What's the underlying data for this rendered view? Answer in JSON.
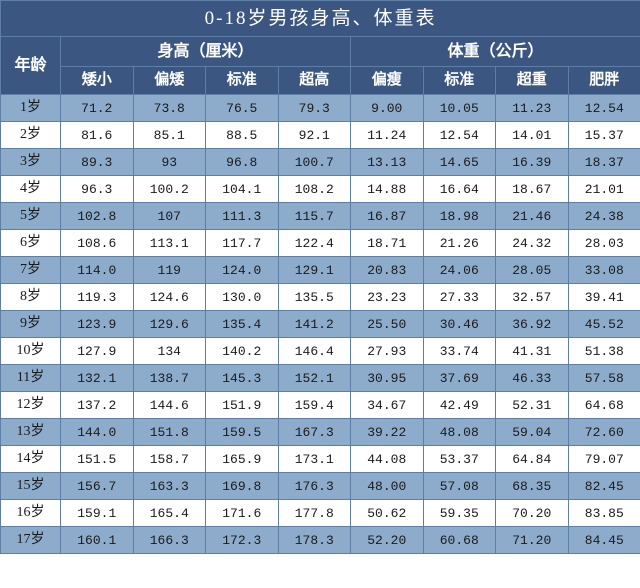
{
  "title": "0-18岁男孩身高、体重表",
  "age_header": "年龄",
  "groups": [
    {
      "label": "身高（厘米）",
      "subs": [
        "矮小",
        "偏矮",
        "标准",
        "超高"
      ]
    },
    {
      "label": "体重（公斤）",
      "subs": [
        "偏瘦",
        "标准",
        "超重",
        "肥胖"
      ]
    }
  ],
  "colors": {
    "header_bg": "#3b5781",
    "header_fg": "#ffffff",
    "border": "#5d7fa5",
    "row_odd": "#8daccb",
    "row_even": "#ffffff",
    "text": "#1a1a1a"
  },
  "rows": [
    {
      "age": "1岁",
      "v": [
        "71.2",
        "73.8",
        "76.5",
        "79.3",
        "9.00",
        "10.05",
        "11.23",
        "12.54"
      ]
    },
    {
      "age": "2岁",
      "v": [
        "81.6",
        "85.1",
        "88.5",
        "92.1",
        "11.24",
        "12.54",
        "14.01",
        "15.37"
      ]
    },
    {
      "age": "3岁",
      "v": [
        "89.3",
        "93",
        "96.8",
        "100.7",
        "13.13",
        "14.65",
        "16.39",
        "18.37"
      ]
    },
    {
      "age": "4岁",
      "v": [
        "96.3",
        "100.2",
        "104.1",
        "108.2",
        "14.88",
        "16.64",
        "18.67",
        "21.01"
      ]
    },
    {
      "age": "5岁",
      "v": [
        "102.8",
        "107",
        "111.3",
        "115.7",
        "16.87",
        "18.98",
        "21.46",
        "24.38"
      ]
    },
    {
      "age": "6岁",
      "v": [
        "108.6",
        "113.1",
        "117.7",
        "122.4",
        "18.71",
        "21.26",
        "24.32",
        "28.03"
      ]
    },
    {
      "age": "7岁",
      "v": [
        "114.0",
        "119",
        "124.0",
        "129.1",
        "20.83",
        "24.06",
        "28.05",
        "33.08"
      ]
    },
    {
      "age": "8岁",
      "v": [
        "119.3",
        "124.6",
        "130.0",
        "135.5",
        "23.23",
        "27.33",
        "32.57",
        "39.41"
      ]
    },
    {
      "age": "9岁",
      "v": [
        "123.9",
        "129.6",
        "135.4",
        "141.2",
        "25.50",
        "30.46",
        "36.92",
        "45.52"
      ]
    },
    {
      "age": "10岁",
      "v": [
        "127.9",
        "134",
        "140.2",
        "146.4",
        "27.93",
        "33.74",
        "41.31",
        "51.38"
      ]
    },
    {
      "age": "11岁",
      "v": [
        "132.1",
        "138.7",
        "145.3",
        "152.1",
        "30.95",
        "37.69",
        "46.33",
        "57.58"
      ]
    },
    {
      "age": "12岁",
      "v": [
        "137.2",
        "144.6",
        "151.9",
        "159.4",
        "34.67",
        "42.49",
        "52.31",
        "64.68"
      ]
    },
    {
      "age": "13岁",
      "v": [
        "144.0",
        "151.8",
        "159.5",
        "167.3",
        "39.22",
        "48.08",
        "59.04",
        "72.60"
      ]
    },
    {
      "age": "14岁",
      "v": [
        "151.5",
        "158.7",
        "165.9",
        "173.1",
        "44.08",
        "53.37",
        "64.84",
        "79.07"
      ]
    },
    {
      "age": "15岁",
      "v": [
        "156.7",
        "163.3",
        "169.8",
        "176.3",
        "48.00",
        "57.08",
        "68.35",
        "82.45"
      ]
    },
    {
      "age": "16岁",
      "v": [
        "159.1",
        "165.4",
        "171.6",
        "177.8",
        "50.62",
        "59.35",
        "70.20",
        "83.85"
      ]
    },
    {
      "age": "17岁",
      "v": [
        "160.1",
        "166.3",
        "172.3",
        "178.3",
        "52.20",
        "60.68",
        "71.20",
        "84.45"
      ]
    }
  ]
}
